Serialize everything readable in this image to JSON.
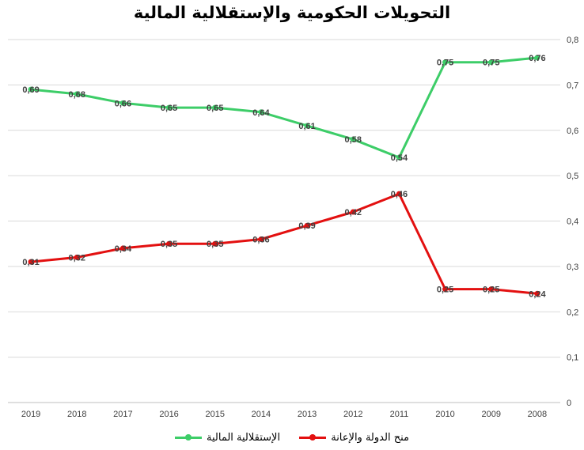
{
  "chart_data": {
    "type": "line",
    "title": "التحويلات الحكومية والإستقلالية المالية",
    "categories": [
      "2019",
      "2018",
      "2017",
      "2016",
      "2015",
      "2014",
      "2013",
      "2012",
      "2011",
      "2010",
      "2009",
      "2008"
    ],
    "series": [
      {
        "name": "الإستقلالية المالية",
        "color": "#3dcd68",
        "values": [
          0.69,
          0.68,
          0.66,
          0.65,
          0.65,
          0.64,
          0.61,
          0.58,
          0.54,
          0.75,
          0.75,
          0.76
        ]
      },
      {
        "name": "منح الدولة والإعانة",
        "color": "#e31010",
        "values": [
          0.31,
          0.32,
          0.34,
          0.35,
          0.35,
          0.36,
          0.39,
          0.42,
          0.46,
          0.25,
          0.25,
          0.24
        ]
      }
    ],
    "ylim": [
      0,
      0.8
    ],
    "y_ticks": [
      "0",
      "0,1",
      "0,2",
      "0,3",
      "0,4",
      "0,5",
      "0,6",
      "0,7",
      "0,8"
    ],
    "y_axis_side": "right",
    "grid": true,
    "data_labels": true,
    "decimal_separator": ",",
    "legend_position": "bottom"
  }
}
